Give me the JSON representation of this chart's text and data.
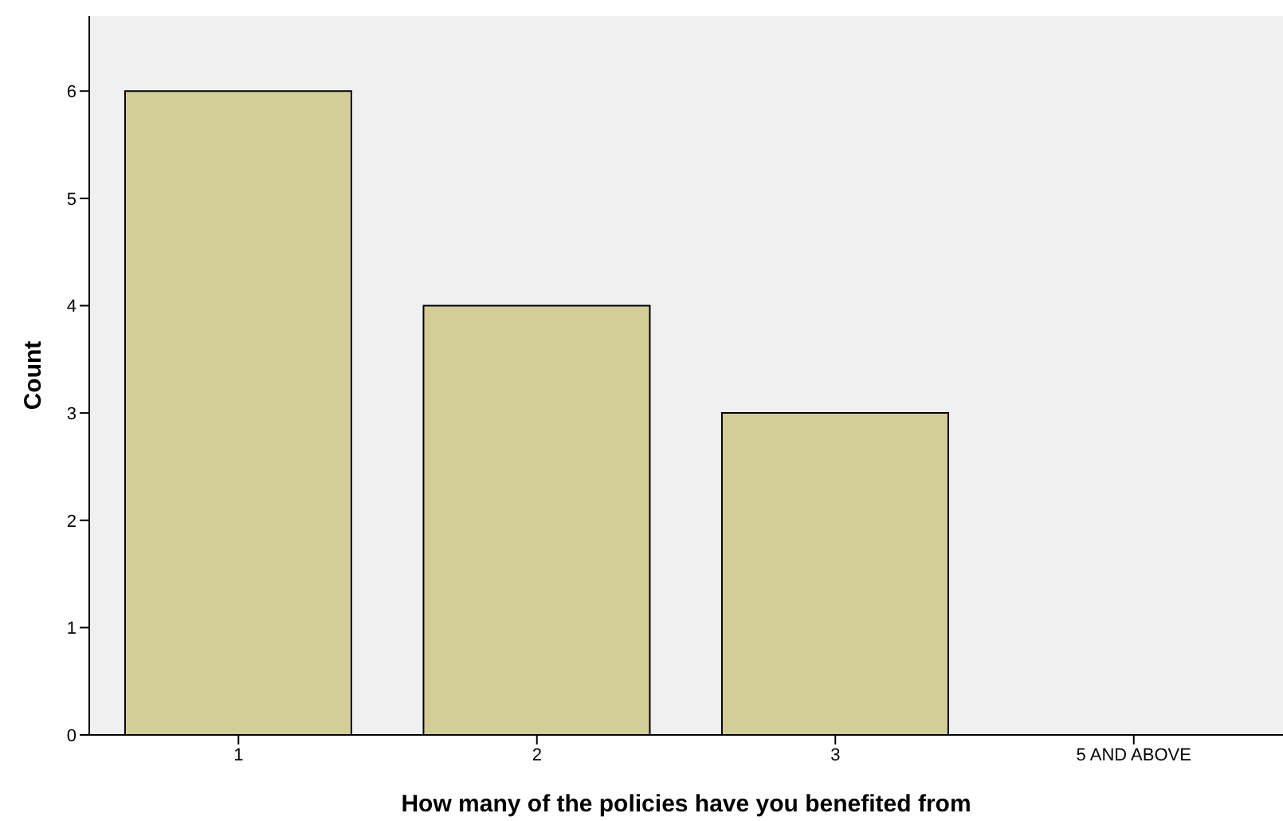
{
  "chart_data": {
    "type": "bar",
    "xlabel": "How many of the policies have you benefited from",
    "ylabel": "Count",
    "categories": [
      "1",
      "2",
      "3",
      "5 AND ABOVE"
    ],
    "values": [
      6,
      4,
      3,
      0
    ],
    "color": "#d3ce99",
    "ylim": [
      0,
      6.7
    ],
    "yticks": [
      0,
      1,
      2,
      3,
      4,
      5,
      6
    ],
    "grid": false,
    "legend": false
  }
}
